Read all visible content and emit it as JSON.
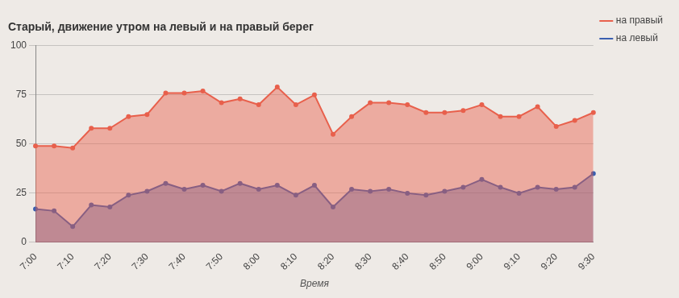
{
  "chart_data": {
    "type": "line",
    "title": "Старый, движение утром на левый и на правый берег",
    "xlabel": "Время",
    "categories": [
      "7:00",
      null,
      "7:10",
      null,
      "7:20",
      null,
      "7:30",
      null,
      "7:40",
      null,
      "7:50",
      null,
      "8:00",
      null,
      "8:10",
      null,
      "8:20",
      null,
      "8:30",
      null,
      "8:40",
      null,
      "8:50",
      null,
      "9:00",
      null,
      "9:10",
      null,
      "9:20",
      null,
      "9:30"
    ],
    "series": [
      {
        "name": "на правый",
        "color": "#e8604c",
        "marker": "circle",
        "values": [
          49,
          49,
          48,
          58,
          58,
          64,
          65,
          76,
          76,
          77,
          71,
          73,
          70,
          79,
          70,
          75,
          55,
          64,
          71,
          71,
          70,
          66,
          66,
          67,
          70,
          64,
          64,
          69,
          59,
          62,
          66
        ]
      },
      {
        "name": "на левый",
        "color": "#3a5fb0",
        "marker": "circle",
        "values": [
          17,
          16,
          8,
          19,
          18,
          24,
          26,
          30,
          27,
          29,
          26,
          30,
          27,
          29,
          24,
          29,
          18,
          27,
          26,
          27,
          25,
          24,
          26,
          28,
          32,
          28,
          25,
          28,
          27,
          28,
          35
        ]
      }
    ],
    "ylim": [
      0,
      100
    ],
    "yticks": [
      0,
      25,
      50,
      75,
      100
    ],
    "grid": true,
    "legend": "top-right"
  }
}
